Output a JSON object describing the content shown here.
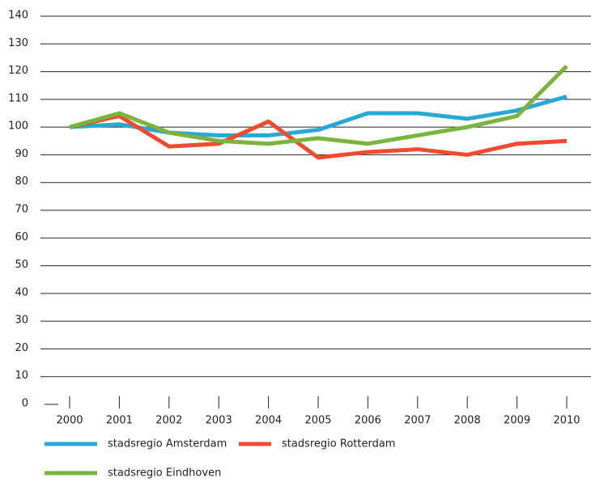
{
  "chart_data": {
    "type": "line",
    "categories": [
      "2000",
      "2001",
      "2002",
      "2003",
      "2004",
      "2005",
      "2006",
      "2007",
      "2008",
      "2009",
      "2010"
    ],
    "series": [
      {
        "name": "stadsregio Amsterdam",
        "color": "#2aa8d4",
        "values": [
          100,
          101,
          98,
          97,
          97,
          99,
          105,
          105,
          103,
          106,
          111
        ]
      },
      {
        "name": "stadsregio Rotterdam",
        "color": "#f04a30",
        "values": [
          100,
          104,
          93,
          94,
          102,
          89,
          91,
          92,
          90,
          94,
          95
        ]
      },
      {
        "name": "stadsregio Eindhoven",
        "color": "#7ab43c",
        "values": [
          100,
          105,
          98,
          95,
          94,
          96,
          94,
          97,
          100,
          104,
          122
        ]
      }
    ],
    "ylim": [
      0,
      140
    ],
    "yticks": [
      0,
      10,
      20,
      30,
      40,
      50,
      60,
      70,
      80,
      90,
      100,
      110,
      120,
      130,
      140
    ],
    "grid": true
  }
}
